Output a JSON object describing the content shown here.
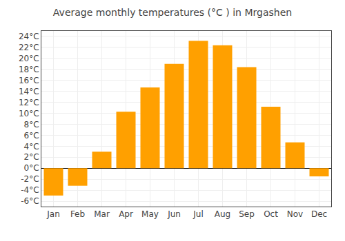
{
  "chart_data": {
    "type": "bar",
    "title": "Average monthly temperatures (°C ) in Mrgashen",
    "categories": [
      "Jan",
      "Feb",
      "Mar",
      "Apr",
      "May",
      "Jun",
      "Jul",
      "Aug",
      "Sep",
      "Oct",
      "Nov",
      "Dec"
    ],
    "values": [
      -5.0,
      -3.2,
      3.0,
      10.3,
      14.7,
      19.0,
      23.2,
      22.4,
      18.4,
      11.2,
      4.7,
      -1.5
    ],
    "color": "#FFA000",
    "ylim": [
      -7,
      25
    ],
    "yticks": [
      {
        "value": -6,
        "label": "-6°C"
      },
      {
        "value": -4,
        "label": "-4°C"
      },
      {
        "value": -2,
        "label": "-2°C"
      },
      {
        "value": 0,
        "label": "0°C"
      },
      {
        "value": 2,
        "label": "2°C"
      },
      {
        "value": 4,
        "label": "4°C"
      },
      {
        "value": 6,
        "label": "6°C"
      },
      {
        "value": 8,
        "label": "8°C"
      },
      {
        "value": 10,
        "label": "10°C"
      },
      {
        "value": 12,
        "label": "12°C"
      },
      {
        "value": 14,
        "label": "14°C"
      },
      {
        "value": 16,
        "label": "16°C"
      },
      {
        "value": 18,
        "label": "18°C"
      },
      {
        "value": 20,
        "label": "20°C"
      },
      {
        "value": 22,
        "label": "22°C"
      },
      {
        "value": 24,
        "label": "24°C"
      }
    ],
    "grid": true
  }
}
